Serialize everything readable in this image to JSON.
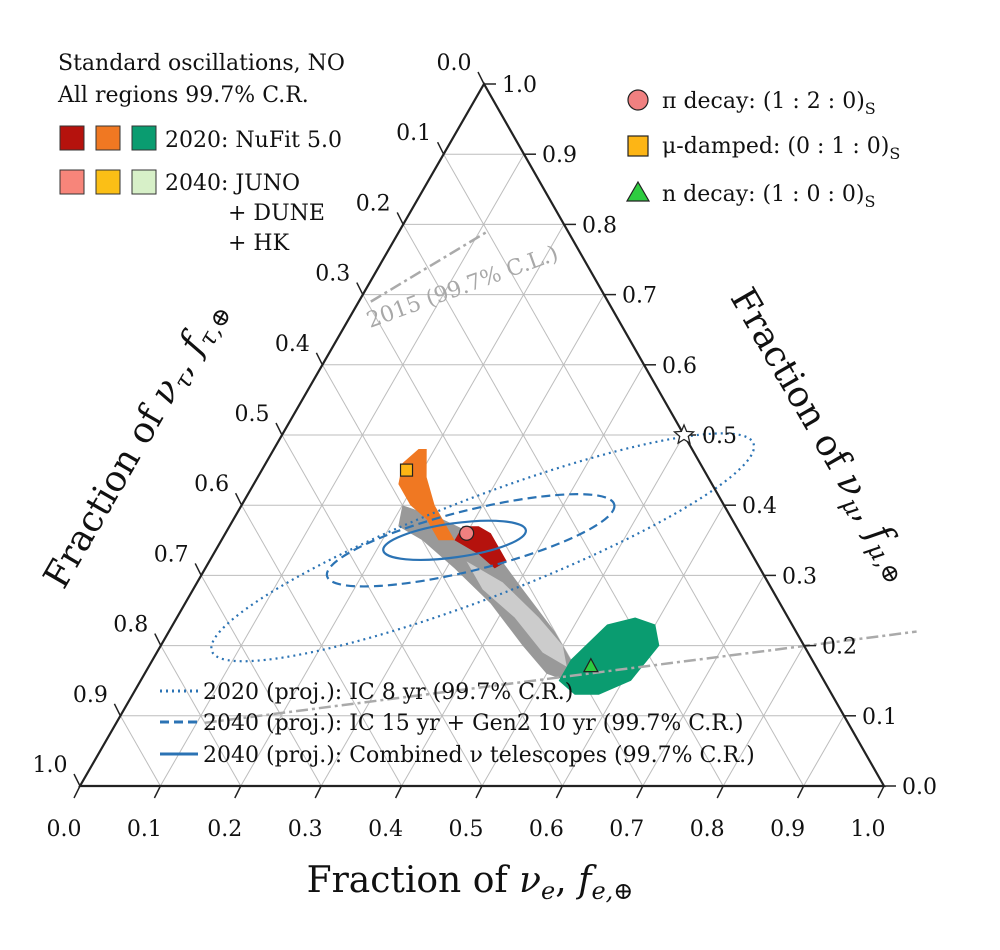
{
  "chart_data": {
    "type": "ternary",
    "axes": {
      "bottom": {
        "label_html": "Fraction of ν<sub>e</sub>, f<sub>e,⊕</sub>",
        "label_plain": "Fraction of ν_e, f_e,⊕"
      },
      "right": {
        "label_plain": "Fraction of ν_μ, f_μ,⊕"
      },
      "left": {
        "label_plain": "Fraction of ν_τ, f_τ,⊕"
      },
      "ticks": [
        "0.0",
        "0.1",
        "0.2",
        "0.3",
        "0.4",
        "0.5",
        "0.6",
        "0.7",
        "0.8",
        "0.9",
        "1.0"
      ],
      "range": [
        0,
        1
      ]
    },
    "title_lines": [
      "Standard oscillations, NO",
      "All regions 99.7% C.R."
    ],
    "legend_fit": {
      "row1_label": "2020: NuFit 5.0",
      "row1_colors": [
        "#b5120d",
        "#f07822",
        "#0a9c70"
      ],
      "row2_label_lines": [
        "2040: JUNO",
        "+ DUNE",
        "+ HK"
      ],
      "row2_colors": [
        "#f7857a",
        "#fbbf16",
        "#d7f0c8"
      ]
    },
    "legend_sources": [
      {
        "label": "π decay: (1 : 2 : 0)",
        "sub": "S",
        "marker": "circle",
        "color": "#f08080",
        "fe": 0.33,
        "fmu": 0.67
      },
      {
        "label": "μ-damped: (0 : 1 : 0)",
        "sub": "S",
        "marker": "square",
        "color": "#fdb515",
        "fe": 0.0,
        "fmu": 1.0
      },
      {
        "label": "n decay: (1 : 0 : 0)",
        "sub": "S",
        "marker": "triangle",
        "color": "#2ecc40",
        "fe": 1.0,
        "fmu": 0.0
      }
    ],
    "markers_earth": [
      {
        "name": "pi-decay-marker",
        "shape": "circle",
        "color": "#f08080",
        "fe": 0.3,
        "fmu": 0.36
      },
      {
        "name": "mu-damped-marker",
        "shape": "square",
        "color": "#fdb515",
        "fe": 0.18,
        "fmu": 0.45
      },
      {
        "name": "n-decay-marker",
        "shape": "triangle",
        "color": "#2ecc40",
        "fe": 0.55,
        "fmu": 0.17
      },
      {
        "name": "star-marker",
        "shape": "star",
        "color": "#ffffff",
        "fe": 0.5,
        "fmu": 0.5
      }
    ],
    "ic_legend": [
      {
        "label": "2020 (proj.): IC 8 yr (99.7% C.R.)",
        "style": "dotted"
      },
      {
        "label": "2040 (proj.): IC 15 yr + Gen2 10 yr (99.7% C.R.)",
        "style": "dashed"
      },
      {
        "label": "2040 (proj.): Combined ν telescopes (99.7% C.R.)",
        "style": "solid"
      }
    ],
    "annotation_2015": "2015 (99.7% C.L.)",
    "series_color": "#2b73b4"
  }
}
